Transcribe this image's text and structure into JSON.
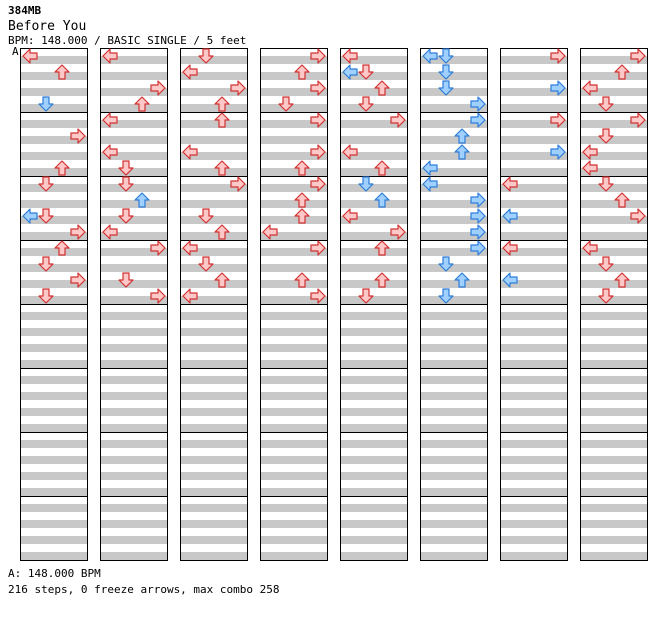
{
  "header": {
    "file": "384MB",
    "song": "Before You",
    "info": "BPM: 148.000 / BASIC SINGLE / 5 feet",
    "bpm_change_marker": "A"
  },
  "footer": {
    "bpm_legend": "A: 148.000 BPM",
    "stats": "216 steps, 0 freeze arrows, max combo 258"
  },
  "colors": {
    "stripe": "#c8c8c8",
    "border": "#000000",
    "red_fill": "#ffc8c8",
    "red_stroke": "#d03030",
    "blue_fill": "#a0d0ff",
    "blue_stroke": "#2e7cd6"
  },
  "chart_data": {
    "type": "step-chart",
    "columns": 8,
    "measures_per_column": 8,
    "note_directions": [
      "left",
      "down",
      "up",
      "right"
    ],
    "note_colors": {
      "red": "quarter-note",
      "blue": "eighth-note"
    },
    "notes": [
      [
        0,
        0,
        0,
        "red"
      ],
      [
        0,
        1,
        2,
        "red"
      ],
      [
        0,
        3,
        1,
        "blue"
      ],
      [
        0,
        5,
        3,
        "red"
      ],
      [
        0,
        7,
        2,
        "red"
      ],
      [
        0,
        8,
        1,
        "red"
      ],
      [
        0,
        10,
        0,
        "blue"
      ],
      [
        0,
        10,
        1,
        "red"
      ],
      [
        0,
        11,
        3,
        "red"
      ],
      [
        0,
        12,
        2,
        "red"
      ],
      [
        0,
        13,
        1,
        "red"
      ],
      [
        0,
        14,
        3,
        "red"
      ],
      [
        0,
        15,
        1,
        "red"
      ],
      [
        1,
        0,
        0,
        "red"
      ],
      [
        1,
        2,
        3,
        "red"
      ],
      [
        1,
        3,
        2,
        "red"
      ],
      [
        1,
        4,
        0,
        "red"
      ],
      [
        1,
        6,
        0,
        "red"
      ],
      [
        1,
        7,
        1,
        "red"
      ],
      [
        1,
        8,
        1,
        "red"
      ],
      [
        1,
        9,
        2,
        "blue"
      ],
      [
        1,
        10,
        1,
        "red"
      ],
      [
        1,
        11,
        0,
        "red"
      ],
      [
        1,
        12,
        3,
        "red"
      ],
      [
        1,
        14,
        1,
        "red"
      ],
      [
        1,
        15,
        3,
        "red"
      ],
      [
        2,
        0,
        1,
        "red"
      ],
      [
        2,
        1,
        0,
        "red"
      ],
      [
        2,
        2,
        3,
        "red"
      ],
      [
        2,
        3,
        2,
        "red"
      ],
      [
        2,
        4,
        2,
        "red"
      ],
      [
        2,
        6,
        0,
        "red"
      ],
      [
        2,
        7,
        2,
        "red"
      ],
      [
        2,
        8,
        3,
        "red"
      ],
      [
        2,
        10,
        1,
        "red"
      ],
      [
        2,
        11,
        2,
        "red"
      ],
      [
        2,
        12,
        0,
        "red"
      ],
      [
        2,
        13,
        1,
        "red"
      ],
      [
        2,
        14,
        2,
        "red"
      ],
      [
        2,
        15,
        0,
        "red"
      ],
      [
        3,
        0,
        3,
        "red"
      ],
      [
        3,
        1,
        2,
        "red"
      ],
      [
        3,
        2,
        3,
        "red"
      ],
      [
        3,
        3,
        1,
        "red"
      ],
      [
        3,
        4,
        3,
        "red"
      ],
      [
        3,
        6,
        3,
        "red"
      ],
      [
        3,
        7,
        2,
        "red"
      ],
      [
        3,
        8,
        3,
        "red"
      ],
      [
        3,
        9,
        2,
        "red"
      ],
      [
        3,
        10,
        2,
        "red"
      ],
      [
        3,
        11,
        0,
        "red"
      ],
      [
        3,
        12,
        3,
        "red"
      ],
      [
        3,
        14,
        2,
        "red"
      ],
      [
        3,
        15,
        3,
        "red"
      ],
      [
        4,
        0,
        0,
        "red"
      ],
      [
        4,
        1,
        0,
        "blue"
      ],
      [
        4,
        1,
        1,
        "red"
      ],
      [
        4,
        2,
        2,
        "red"
      ],
      [
        4,
        3,
        1,
        "red"
      ],
      [
        4,
        4,
        3,
        "red"
      ],
      [
        4,
        6,
        0,
        "red"
      ],
      [
        4,
        7,
        2,
        "red"
      ],
      [
        4,
        8,
        1,
        "blue"
      ],
      [
        4,
        9,
        2,
        "blue"
      ],
      [
        4,
        10,
        0,
        "red"
      ],
      [
        4,
        11,
        3,
        "red"
      ],
      [
        4,
        12,
        2,
        "red"
      ],
      [
        4,
        14,
        2,
        "red"
      ],
      [
        4,
        15,
        1,
        "red"
      ],
      [
        5,
        0,
        0,
        "blue"
      ],
      [
        5,
        0,
        1,
        "blue"
      ],
      [
        5,
        1,
        1,
        "blue"
      ],
      [
        5,
        2,
        1,
        "blue"
      ],
      [
        5,
        3,
        3,
        "blue"
      ],
      [
        5,
        4,
        3,
        "blue"
      ],
      [
        5,
        5,
        2,
        "blue"
      ],
      [
        5,
        6,
        2,
        "blue"
      ],
      [
        5,
        7,
        0,
        "blue"
      ],
      [
        5,
        8,
        0,
        "blue"
      ],
      [
        5,
        9,
        3,
        "blue"
      ],
      [
        5,
        10,
        3,
        "blue"
      ],
      [
        5,
        11,
        3,
        "blue"
      ],
      [
        5,
        12,
        3,
        "blue"
      ],
      [
        5,
        13,
        1,
        "blue"
      ],
      [
        5,
        14,
        2,
        "blue"
      ],
      [
        5,
        15,
        1,
        "blue"
      ],
      [
        6,
        0,
        3,
        "red"
      ],
      [
        6,
        2,
        3,
        "blue"
      ],
      [
        6,
        4,
        3,
        "red"
      ],
      [
        6,
        6,
        3,
        "blue"
      ],
      [
        6,
        8,
        0,
        "red"
      ],
      [
        6,
        10,
        0,
        "blue"
      ],
      [
        6,
        12,
        0,
        "red"
      ],
      [
        6,
        14,
        0,
        "blue"
      ],
      [
        7,
        0,
        3,
        "red"
      ],
      [
        7,
        1,
        2,
        "red"
      ],
      [
        7,
        2,
        0,
        "red"
      ],
      [
        7,
        3,
        1,
        "red"
      ],
      [
        7,
        4,
        3,
        "red"
      ],
      [
        7,
        5,
        1,
        "red"
      ],
      [
        7,
        6,
        0,
        "red"
      ],
      [
        7,
        7,
        0,
        "red"
      ],
      [
        7,
        8,
        1,
        "red"
      ],
      [
        7,
        9,
        2,
        "red"
      ],
      [
        7,
        10,
        3,
        "red"
      ],
      [
        7,
        12,
        0,
        "red"
      ],
      [
        7,
        13,
        1,
        "red"
      ],
      [
        7,
        14,
        2,
        "red"
      ],
      [
        7,
        15,
        1,
        "red"
      ]
    ]
  }
}
